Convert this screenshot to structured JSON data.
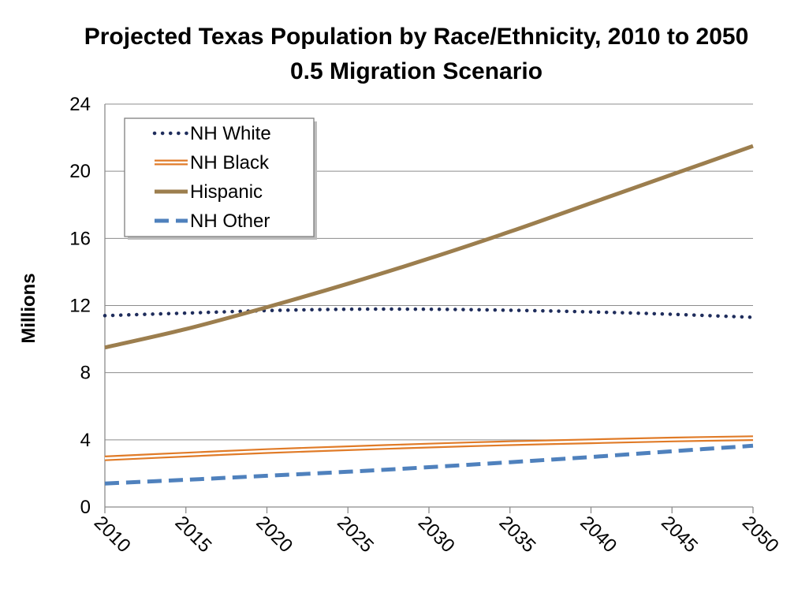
{
  "chart_data": {
    "type": "line",
    "title": "Projected Texas Population by Race/Ethnicity, 2010 to 2050",
    "subtitle": "0.5 Migration Scenario",
    "xlabel": "",
    "ylabel": "Millions",
    "x": [
      2010,
      2015,
      2020,
      2025,
      2030,
      2035,
      2040,
      2045,
      2050
    ],
    "x_ticks": [
      "2010",
      "2015",
      "2020",
      "2025",
      "2030",
      "2035",
      "2040",
      "2045",
      "2050"
    ],
    "y_ticks": [
      "0",
      "4",
      "8",
      "12",
      "16",
      "20",
      "24"
    ],
    "xlim": [
      2010,
      2050
    ],
    "ylim": [
      0,
      24
    ],
    "grid": "horizontal",
    "legend_position": "top-left",
    "series": [
      {
        "name": "NH White",
        "style": "dotted",
        "color": "#1f2d5c",
        "values": [
          11.4,
          11.55,
          11.7,
          11.78,
          11.78,
          11.72,
          11.62,
          11.48,
          11.3
        ]
      },
      {
        "name": "NH Black",
        "style": "double",
        "color": "#e07b28",
        "values": [
          2.9,
          3.12,
          3.33,
          3.5,
          3.66,
          3.8,
          3.91,
          4.02,
          4.1
        ]
      },
      {
        "name": "Hispanic",
        "style": "solid",
        "color": "#9c7e4e",
        "values": [
          9.5,
          10.6,
          11.9,
          13.3,
          14.8,
          16.4,
          18.1,
          19.8,
          21.5
        ]
      },
      {
        "name": "NH Other",
        "style": "dashed",
        "color": "#4f81bd",
        "values": [
          1.4,
          1.62,
          1.86,
          2.1,
          2.37,
          2.67,
          2.98,
          3.32,
          3.65
        ]
      }
    ]
  }
}
